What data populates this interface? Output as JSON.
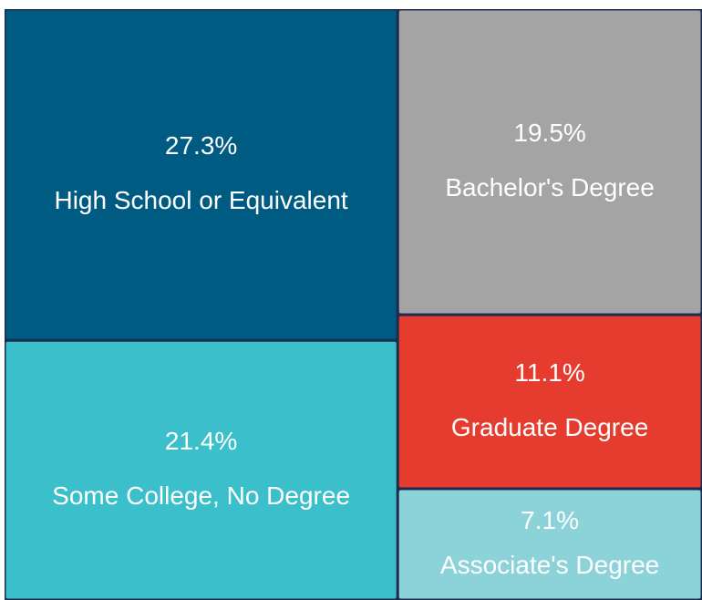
{
  "chart_data": {
    "type": "treemap",
    "categories": [
      "High School or Equivalent",
      "Some College, No Degree",
      "Bachelor's Degree",
      "Graduate Degree",
      "Associate's Degree"
    ],
    "values": [
      27.3,
      21.4,
      19.5,
      11.1,
      7.1
    ],
    "value_labels": [
      "27.3%",
      "21.4%",
      "19.5%",
      "11.1%",
      "7.1%"
    ],
    "colors": [
      "#005b82",
      "#3bc0cb",
      "#a4a4a4",
      "#e63c2f",
      "#8bd3d9"
    ]
  }
}
